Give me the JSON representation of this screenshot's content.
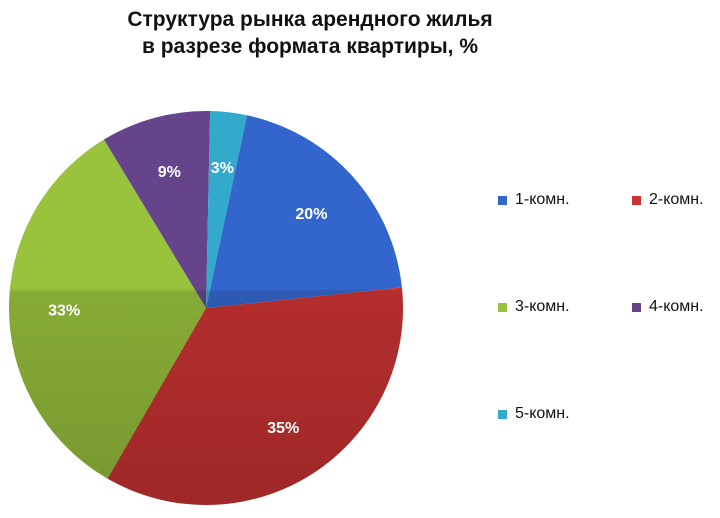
{
  "chart_data": {
    "type": "pie",
    "title_lines": [
      "Структура рынка арендного жилья",
      "в разрезе формата квартиры, %"
    ],
    "categories": [
      "1-комн.",
      "2-комн.",
      "3-комн.",
      "4-комн.",
      "5-комн."
    ],
    "values": [
      20,
      35,
      33,
      9,
      3
    ],
    "value_labels": [
      "20%",
      "35%",
      "33%",
      "9%",
      "3%"
    ],
    "colors": [
      "#3366cc",
      "#cc3333",
      "#99c23d",
      "#66448c",
      "#33aacc"
    ],
    "legend_position": "right"
  }
}
